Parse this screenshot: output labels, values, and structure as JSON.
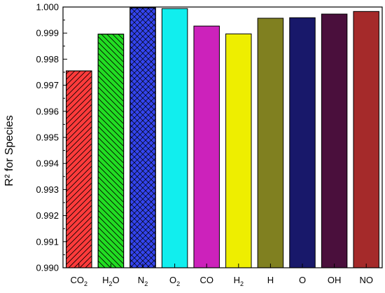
{
  "chart_data": {
    "type": "bar",
    "title": "",
    "xlabel": "",
    "ylabel": "R² for Species",
    "ylim": [
      0.99,
      1.0
    ],
    "yticks": [
      "0.990",
      "0.991",
      "0.992",
      "0.993",
      "0.994",
      "0.995",
      "0.996",
      "0.997",
      "0.998",
      "0.999",
      "1.000"
    ],
    "grid": false,
    "legend": "none",
    "categories": [
      {
        "base": "CO",
        "sub": "2"
      },
      {
        "base": "H",
        "sub": "2",
        "tail": "O"
      },
      {
        "base": "N",
        "sub": "2"
      },
      {
        "base": "O",
        "sub": "2"
      },
      {
        "base": "CO"
      },
      {
        "base": "H",
        "sub": "2"
      },
      {
        "base": "H"
      },
      {
        "base": "O"
      },
      {
        "base": "OH"
      },
      {
        "base": "NO"
      }
    ],
    "values": [
      0.99755,
      0.99896,
      0.99997,
      0.99994,
      0.99927,
      0.99897,
      0.99957,
      0.99959,
      0.99973,
      0.99983
    ],
    "colors": [
      "#ff3b3b",
      "#22dd22",
      "#3344ee",
      "#11eeee",
      "#cc22bb",
      "#eeee00",
      "#808020",
      "#18186a",
      "#4a0f3c",
      "#a52a2a"
    ],
    "patterns": [
      "diag-right",
      "diag-left",
      "crosshatch",
      "none",
      "none",
      "none",
      "none",
      "none",
      "none",
      "none"
    ]
  }
}
